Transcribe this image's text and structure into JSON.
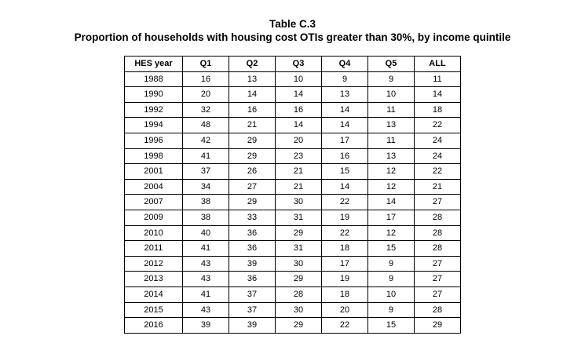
{
  "page": {
    "title": "Table C.3",
    "subtitle": "Proportion of households with housing cost OTIs greater than 30%, by income quintile"
  },
  "table": {
    "columns": [
      "HES year",
      "Q1",
      "Q2",
      "Q3",
      "Q4",
      "Q5",
      "ALL"
    ],
    "rows": [
      [
        "1988",
        16,
        13,
        10,
        9,
        9,
        11
      ],
      [
        "1990",
        20,
        14,
        14,
        13,
        10,
        14
      ],
      [
        "1992",
        32,
        16,
        16,
        14,
        11,
        18
      ],
      [
        "1994",
        48,
        21,
        14,
        14,
        13,
        22
      ],
      [
        "1996",
        42,
        29,
        20,
        17,
        11,
        24
      ],
      [
        "1998",
        41,
        29,
        23,
        16,
        13,
        24
      ],
      [
        "2001",
        37,
        26,
        21,
        15,
        12,
        22
      ],
      [
        "2004",
        34,
        27,
        21,
        14,
        12,
        21
      ],
      [
        "2007",
        38,
        29,
        30,
        22,
        14,
        27
      ],
      [
        "2009",
        38,
        33,
        31,
        19,
        17,
        28
      ],
      [
        "2010",
        40,
        36,
        29,
        22,
        12,
        28
      ],
      [
        "2011",
        41,
        36,
        31,
        18,
        15,
        28
      ],
      [
        "2012",
        43,
        39,
        30,
        17,
        9,
        27
      ],
      [
        "2013",
        43,
        36,
        29,
        19,
        9,
        27
      ],
      [
        "2014",
        41,
        37,
        28,
        18,
        10,
        27
      ],
      [
        "2015",
        43,
        37,
        30,
        20,
        9,
        28
      ],
      [
        "2016",
        39,
        39,
        29,
        22,
        15,
        29
      ]
    ],
    "colors": {
      "border": "#000000",
      "text": "#000000",
      "background": "#ffffff"
    }
  }
}
